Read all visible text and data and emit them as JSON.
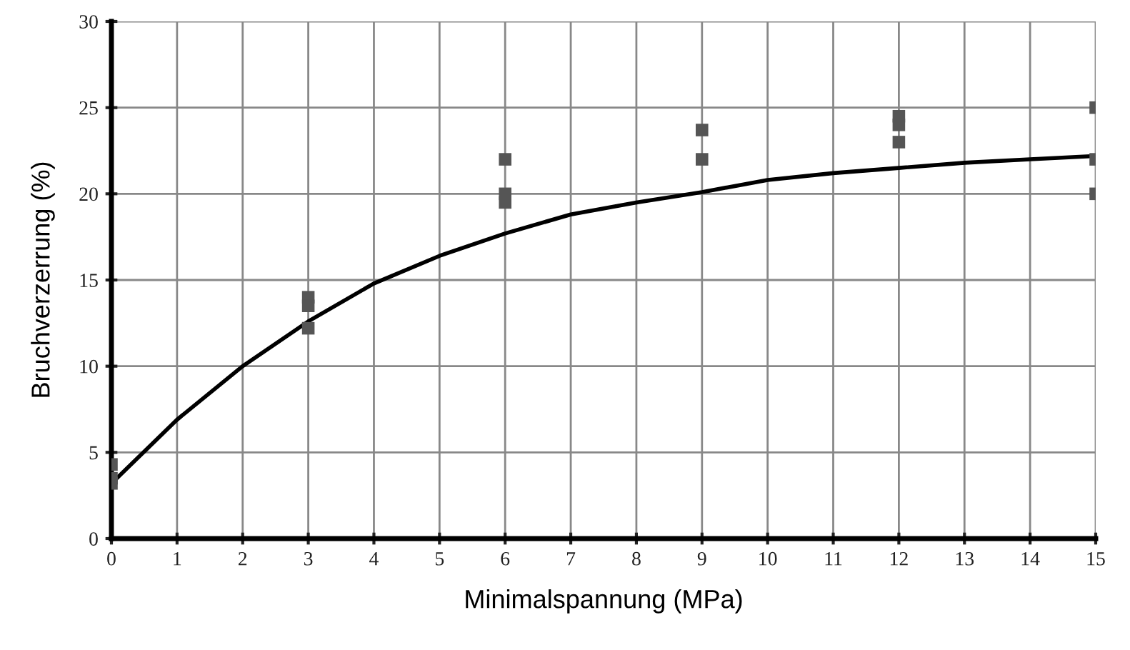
{
  "chart_data": {
    "type": "scatter",
    "xlabel": "Minimalspannung (MPa)",
    "ylabel": "Bruchverzerrung (%)",
    "xlim": [
      0,
      15
    ],
    "xticks": [
      0,
      1,
      2,
      3,
      4,
      5,
      6,
      7,
      8,
      9,
      10,
      11,
      12,
      13,
      14,
      15
    ],
    "ylim": [
      0,
      30
    ],
    "yticks": [
      0,
      5,
      10,
      15,
      20,
      25,
      30
    ],
    "grid": true,
    "series": [
      {
        "color": "#555555",
        "marker": "square",
        "x": [
          0,
          0,
          0,
          3,
          3,
          3,
          6,
          6,
          6,
          9,
          9,
          12,
          12,
          12,
          15,
          15,
          15
        ],
        "values": [
          4.3,
          3.5,
          3.2,
          14.0,
          13.5,
          12.2,
          22,
          20,
          19.5,
          23.7,
          22,
          24.5,
          24,
          23,
          25,
          22,
          20
        ]
      },
      {
        "type": "line",
        "color": "#000000",
        "marker": "none",
        "line_style": "solid",
        "x": [
          0,
          1,
          2,
          3,
          4,
          5,
          6,
          7,
          8,
          9,
          10,
          11,
          12,
          13,
          14,
          15
        ],
        "values": [
          3.2,
          6.9,
          10,
          12.6,
          14.8,
          16.4,
          17.7,
          18.8,
          19.5,
          20.1,
          20.8,
          21.2,
          21.5,
          21.8,
          22.0,
          22.2
        ]
      }
    ]
  }
}
